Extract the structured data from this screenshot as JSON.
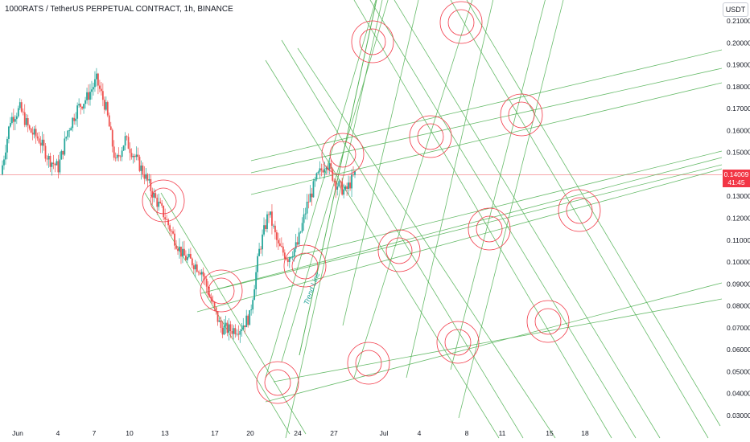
{
  "header": {
    "title": "1000RATS / TetherUS PERPETUAL CONTRACT, 1h, BINANCE",
    "unit": "USDT"
  },
  "price_tag": {
    "price": "0.14009",
    "countdown": "41:45"
  },
  "colors": {
    "candle_up": "#26a69a",
    "candle_down": "#ef5350",
    "circle": "#f23645",
    "line": "#4caf50",
    "price_line": "#f7a7ab",
    "annotation": "#26a69a"
  },
  "chart_data": {
    "type": "candlestick",
    "title": "1000RATS / TetherUS PERPETUAL CONTRACT, 1h, BINANCE",
    "ylabel": "USDT",
    "ylim": [
      0.025,
      0.215
    ],
    "y_ticks": [
      "0.21000",
      "0.20000",
      "0.19000",
      "0.18000",
      "0.17000",
      "0.16000",
      "0.15000",
      "0.14000",
      "0.13000",
      "0.12000",
      "0.11000",
      "0.10000",
      "0.09000",
      "0.08000",
      "0.07000",
      "0.06000",
      "0.05000",
      "0.04000",
      "0.03000"
    ],
    "x_ticks": [
      "Jun",
      "4",
      "7",
      "10",
      "13",
      "17",
      "20",
      "24",
      "27",
      "Jul",
      "4",
      "8",
      "11",
      "15",
      "18"
    ],
    "last_price": 0.14009,
    "price_path": [
      {
        "date": "Jun 1",
        "close": 0.14
      },
      {
        "date": "Jun 1",
        "close": 0.165
      },
      {
        "date": "Jun 2",
        "close": 0.17
      },
      {
        "date": "Jun 3",
        "close": 0.16
      },
      {
        "date": "Jun 3",
        "close": 0.156
      },
      {
        "date": "Jun 4",
        "close": 0.147
      },
      {
        "date": "Jun 5",
        "close": 0.143
      },
      {
        "date": "Jun 5",
        "close": 0.16
      },
      {
        "date": "Jun 6",
        "close": 0.17
      },
      {
        "date": "Jun 7",
        "close": 0.175
      },
      {
        "date": "Jun 7",
        "close": 0.183
      },
      {
        "date": "Jun 8",
        "close": 0.17
      },
      {
        "date": "Jun 8",
        "close": 0.145
      },
      {
        "date": "Jun 9",
        "close": 0.156
      },
      {
        "date": "Jun 10",
        "close": 0.148
      },
      {
        "date": "Jun 11",
        "close": 0.14
      },
      {
        "date": "Jun 12",
        "close": 0.13
      },
      {
        "date": "Jun 13",
        "close": 0.122
      },
      {
        "date": "Jun 14",
        "close": 0.112
      },
      {
        "date": "Jun 15",
        "close": 0.103
      },
      {
        "date": "Jun 16",
        "close": 0.1
      },
      {
        "date": "Jun 17",
        "close": 0.096
      },
      {
        "date": "Jun 18",
        "close": 0.082
      },
      {
        "date": "Jun 19",
        "close": 0.07
      },
      {
        "date": "Jun 20",
        "close": 0.069
      },
      {
        "date": "Jun 21",
        "close": 0.07
      },
      {
        "date": "Jun 22",
        "close": 0.075
      },
      {
        "date": "Jun 22",
        "close": 0.105
      },
      {
        "date": "Jun 23",
        "close": 0.123
      },
      {
        "date": "Jun 23",
        "close": 0.107
      },
      {
        "date": "Jun 24",
        "close": 0.102
      },
      {
        "date": "Jun 25",
        "close": 0.108
      },
      {
        "date": "Jun 25",
        "close": 0.126
      },
      {
        "date": "Jun 26",
        "close": 0.138
      },
      {
        "date": "Jun 27",
        "close": 0.146
      },
      {
        "date": "Jun 27",
        "close": 0.136
      },
      {
        "date": "Jun 28",
        "close": 0.132
      },
      {
        "date": "Jun 29",
        "close": 0.14
      }
    ],
    "circles": [
      {
        "date": "Jun 13",
        "price": 0.126
      },
      {
        "date": "Jun 18",
        "price": 0.087
      },
      {
        "date": "Jun 22",
        "price": 0.045
      },
      {
        "date": "Jun 24",
        "price": 0.099
      },
      {
        "date": "Jun 28",
        "price": 0.146
      },
      {
        "date": "Jun 30",
        "price": 0.2
      },
      {
        "date": "Jun 30",
        "price": 0.052
      },
      {
        "date": "Jul 2",
        "price": 0.105
      },
      {
        "date": "Jul 4",
        "price": 0.158
      },
      {
        "date": "Jul 8",
        "price": 0.062
      },
      {
        "date": "Jul 8",
        "price": 0.21
      },
      {
        "date": "Jul 9",
        "price": 0.115
      },
      {
        "date": "Jul 11",
        "price": 0.166
      },
      {
        "date": "Jul 15",
        "price": 0.072
      },
      {
        "date": "Jul 17",
        "price": 0.124
      }
    ],
    "lines": [
      {
        "from": {
          "date": "Jun 18",
          "price": 0.08
        },
        "to": {
          "date": "Jul 25",
          "price": 0.133
        }
      },
      {
        "from": {
          "date": "Jun 18",
          "price": 0.082
        },
        "to": {
          "date": "Jul 25",
          "price": 0.134
        }
      }
    ],
    "annotations": [
      {
        "text": "Trend Line"
      }
    ]
  }
}
